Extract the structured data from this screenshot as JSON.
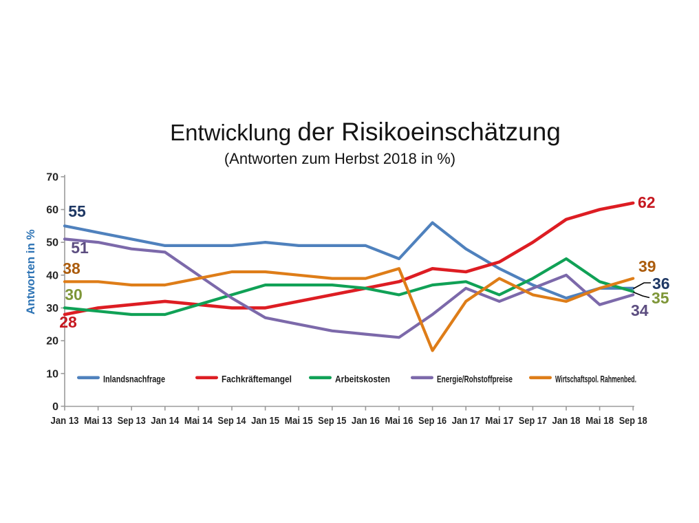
{
  "title": {
    "part1": "Entwicklung ",
    "part2": "der Risikoeinschätzung",
    "subtitle": "(Antworten zum Herbst 2018 in %)"
  },
  "chart_data": {
    "type": "line",
    "title": "Entwicklung der Risikoeinschätzung",
    "subtitle": "(Antworten zum Herbst 2018 in %)",
    "ylabel": "Antworten in %",
    "xlabel": "",
    "ylim": [
      0,
      70
    ],
    "yticks": [
      0,
      10,
      20,
      30,
      40,
      50,
      60,
      70
    ],
    "grid": false,
    "legend_position": "bottom-inside",
    "categories": [
      "Jan 13",
      "Mai 13",
      "Sep 13",
      "Jan 14",
      "Mai 14",
      "Sep 14",
      "Jan 15",
      "Mai 15",
      "Sep 15",
      "Jan 16",
      "Mai 16",
      "Sep 16",
      "Jan 17",
      "Mai 17",
      "Sep 17",
      "Jan 18",
      "Mai 18",
      "Sep 18"
    ],
    "series": [
      {
        "name": "Inlandsnachfrage",
        "color": "#4f81bd",
        "label_color": "#1f3864",
        "start_label": "55",
        "end_label": "36",
        "values": [
          55,
          53,
          51,
          49,
          49,
          49,
          50,
          49,
          49,
          49,
          45,
          56,
          48,
          42,
          37,
          33,
          36,
          36
        ]
      },
      {
        "name": "Fachkräftemangel",
        "color": "#dd1d23",
        "label_color": "#c61820",
        "start_label": "28",
        "end_label": "62",
        "values": [
          28,
          30,
          31,
          32,
          31,
          30,
          30,
          32,
          34,
          36,
          38,
          42,
          41,
          44,
          50,
          57,
          60,
          62
        ]
      },
      {
        "name": "Arbeitskosten",
        "color": "#10a156",
        "label_color": "#7e9638",
        "start_label": "30",
        "end_label": "35",
        "values": [
          30,
          29,
          28,
          28,
          31,
          34,
          37,
          37,
          37,
          36,
          34,
          37,
          38,
          34,
          39,
          45,
          38,
          35
        ]
      },
      {
        "name": "Energie/Rohstoffpreise",
        "color": "#7c69aa",
        "label_color": "#5c4d80",
        "start_label": "51",
        "end_label": "34",
        "values": [
          51,
          50,
          48,
          47,
          40,
          33,
          27,
          25,
          23,
          22,
          21,
          28,
          36,
          32,
          36,
          40,
          31,
          34
        ]
      },
      {
        "name": "Wirtschaftspol. Rahmenbed.",
        "color": "#de7d18",
        "label_color": "#ab5c0d",
        "start_label": "38",
        "end_label": "39",
        "values": [
          38,
          38,
          37,
          37,
          39,
          41,
          41,
          40,
          39,
          39,
          42,
          17,
          32,
          39,
          34,
          32,
          36,
          39
        ]
      }
    ]
  },
  "colors": {
    "axis": "#9a9a9a",
    "tick_text": "#262626",
    "ylabel_text": "#2e74b5",
    "legend_text": "#1a1a1a",
    "leader_line": "#000000"
  }
}
